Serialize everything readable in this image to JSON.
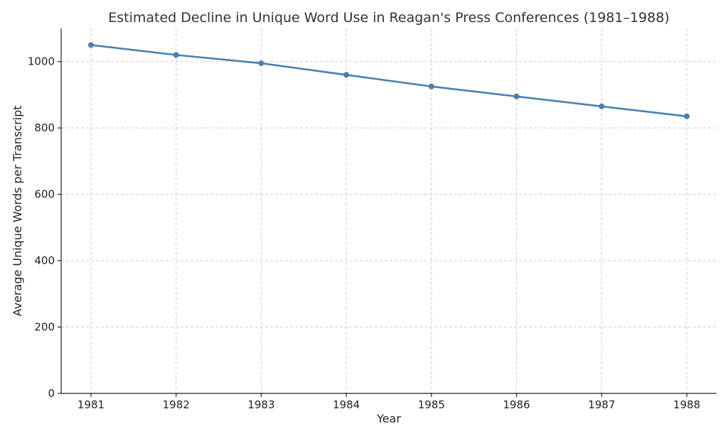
{
  "chart_data": {
    "type": "line",
    "title": "Estimated Decline in Unique Word Use in Reagan's Press Conferences (1981–1988)",
    "xlabel": "Year",
    "ylabel": "Average Unique Words per Transcript",
    "categories": [
      "1981",
      "1982",
      "1983",
      "1984",
      "1985",
      "1986",
      "1987",
      "1988"
    ],
    "series": [
      {
        "values": [
          1050,
          1020,
          995,
          960,
          925,
          895,
          865,
          835
        ],
        "color": "#4a7fb0"
      }
    ],
    "ylim": [
      0,
      1100
    ],
    "yticks": [
      0,
      200,
      400,
      600,
      800,
      1000
    ],
    "grid": true,
    "legend": "none"
  }
}
